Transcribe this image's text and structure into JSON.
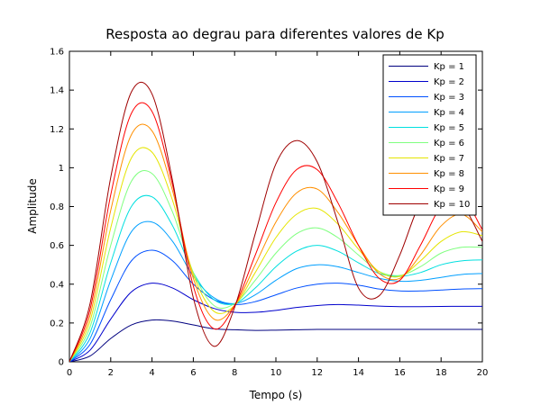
{
  "chart_data": {
    "type": "line",
    "title": "Resposta ao degrau para diferentes valores de Kp",
    "xlabel": "Tempo (s)",
    "ylabel": "Amplitude",
    "xlim": [
      0,
      20
    ],
    "ylim": [
      0,
      1.6
    ],
    "xticks": [
      0,
      2,
      4,
      6,
      8,
      10,
      12,
      14,
      16,
      18,
      20
    ],
    "yticks": [
      0,
      0.2,
      0.4,
      0.6,
      0.8,
      1,
      1.2,
      1.4,
      1.6
    ],
    "xtick_labels": [
      "0",
      "2",
      "4",
      "6",
      "8",
      "10",
      "12",
      "14",
      "16",
      "18",
      "20"
    ],
    "ytick_labels": [
      "0",
      "0.2",
      "0.4",
      "0.6",
      "0.8",
      "1",
      "1.2",
      "1.4",
      "1.6"
    ],
    "grid": false,
    "legend_position": "top-right",
    "x": [
      0,
      1,
      2,
      3,
      4,
      5,
      6,
      7,
      8,
      9,
      10,
      11,
      12,
      13,
      14,
      15,
      16,
      17,
      18,
      19,
      20
    ],
    "series": [
      {
        "name": "Kp = 1",
        "color": "#00007f",
        "values": [
          0,
          0.03,
          0.12,
          0.19,
          0.215,
          0.21,
          0.19,
          0.17,
          0.165,
          0.162,
          0.163,
          0.165,
          0.167,
          0.167,
          0.167,
          0.167,
          0.167,
          0.167,
          0.167,
          0.167,
          0.167
        ]
      },
      {
        "name": "Kp = 2",
        "color": "#0000cc",
        "values": [
          0,
          0.06,
          0.22,
          0.36,
          0.405,
          0.38,
          0.32,
          0.275,
          0.255,
          0.255,
          0.265,
          0.28,
          0.29,
          0.295,
          0.292,
          0.287,
          0.284,
          0.284,
          0.285,
          0.286,
          0.286
        ]
      },
      {
        "name": "Kp = 3",
        "color": "#0050ff",
        "values": [
          0,
          0.09,
          0.32,
          0.52,
          0.575,
          0.52,
          0.4,
          0.32,
          0.295,
          0.31,
          0.345,
          0.38,
          0.4,
          0.405,
          0.395,
          0.375,
          0.365,
          0.365,
          0.37,
          0.375,
          0.377
        ]
      },
      {
        "name": "Kp = 4",
        "color": "#009fff",
        "values": [
          0,
          0.12,
          0.42,
          0.67,
          0.72,
          0.62,
          0.44,
          0.33,
          0.3,
          0.345,
          0.42,
          0.48,
          0.5,
          0.49,
          0.46,
          0.43,
          0.415,
          0.42,
          0.435,
          0.45,
          0.455
        ]
      },
      {
        "name": "Kp = 5",
        "color": "#00dfdf",
        "values": [
          0,
          0.15,
          0.51,
          0.8,
          0.85,
          0.7,
          0.46,
          0.32,
          0.3,
          0.38,
          0.49,
          0.57,
          0.6,
          0.57,
          0.51,
          0.455,
          0.44,
          0.46,
          0.5,
          0.52,
          0.525
        ]
      },
      {
        "name": "Kp = 6",
        "color": "#7fff7f",
        "values": [
          0,
          0.18,
          0.6,
          0.93,
          0.97,
          0.77,
          0.46,
          0.29,
          0.3,
          0.42,
          0.56,
          0.66,
          0.69,
          0.64,
          0.55,
          0.465,
          0.445,
          0.49,
          0.56,
          0.59,
          0.59
        ]
      },
      {
        "name": "Kp = 7",
        "color": "#e5e500",
        "values": [
          0,
          0.21,
          0.69,
          1.05,
          1.08,
          0.83,
          0.45,
          0.26,
          0.29,
          0.46,
          0.64,
          0.76,
          0.79,
          0.71,
          0.58,
          0.465,
          0.44,
          0.52,
          0.62,
          0.67,
          0.65
        ]
      },
      {
        "name": "Kp = 8",
        "color": "#ff8f00",
        "values": [
          0,
          0.24,
          0.78,
          1.17,
          1.19,
          0.88,
          0.43,
          0.22,
          0.29,
          0.5,
          0.72,
          0.87,
          0.89,
          0.77,
          0.6,
          0.455,
          0.43,
          0.55,
          0.7,
          0.76,
          0.67
        ]
      },
      {
        "name": "Kp = 9",
        "color": "#ff0000",
        "values": [
          0,
          0.27,
          0.86,
          1.28,
          1.29,
          0.91,
          0.39,
          0.17,
          0.29,
          0.55,
          0.82,
          0.99,
          0.99,
          0.82,
          0.6,
          0.43,
          0.42,
          0.6,
          0.8,
          0.85,
          0.68
        ]
      },
      {
        "name": "Kp = 10",
        "color": "#9f0000",
        "values": [
          0,
          0.3,
          0.95,
          1.39,
          1.38,
          0.93,
          0.33,
          0.08,
          0.28,
          0.66,
          1.02,
          1.14,
          1.03,
          0.72,
          0.38,
          0.34,
          0.55,
          0.82,
          0.9,
          0.82,
          0.62
        ]
      }
    ]
  }
}
